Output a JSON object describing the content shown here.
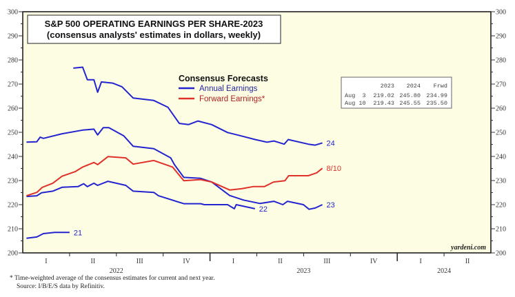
{
  "chart_data": {
    "type": "line",
    "title": "S&P 500 OPERATING EARNINGS PER SHARE-2023",
    "subtitle": "(consensus analysts' estimates in dollars, weekly)",
    "ylim": [
      200,
      300
    ],
    "yticks": [
      "200",
      "210",
      "220",
      "230",
      "240",
      "250",
      "260",
      "270",
      "280",
      "290",
      "300"
    ],
    "xlim": [
      2022.0,
      2024.5
    ],
    "x_quarters": [
      "I",
      "II",
      "III",
      "IV",
      "I",
      "II",
      "III",
      "IV",
      "I",
      "II"
    ],
    "x_years": [
      "2022",
      "2023",
      "2024"
    ],
    "legend": {
      "title": "Consensus Forecasts",
      "items": [
        "Annual Earnings",
        "Forward Earnings*"
      ],
      "placement": "top-center"
    },
    "colors": {
      "annual": "#2323d0",
      "forward": "#e0302a",
      "background": "#fdfde3"
    },
    "series": [
      {
        "name": "21",
        "label": "21",
        "color_key": "annual",
        "points": [
          [
            2022.02,
            206.1
          ],
          [
            2022.075,
            206.6
          ],
          [
            2022.11,
            208.0
          ],
          [
            2022.17,
            208.5
          ],
          [
            2022.25,
            208.5
          ]
        ]
      },
      {
        "name": "22",
        "label": "22",
        "color_key": "annual",
        "points": [
          [
            2022.02,
            223.4
          ],
          [
            2022.075,
            223.7
          ],
          [
            2022.1,
            224.9
          ],
          [
            2022.16,
            225.6
          ],
          [
            2022.21,
            227.2
          ],
          [
            2022.295,
            227.5
          ],
          [
            2022.325,
            228.7
          ],
          [
            2022.345,
            227.5
          ],
          [
            2022.38,
            228.9
          ],
          [
            2022.4,
            228.0
          ],
          [
            2022.455,
            229.7
          ],
          [
            2022.55,
            228.0
          ],
          [
            2022.59,
            225.6
          ],
          [
            2022.7,
            225.1
          ],
          [
            2022.725,
            223.7
          ],
          [
            2022.86,
            220.4
          ],
          [
            2022.95,
            220.4
          ],
          [
            2022.97,
            220.0
          ],
          [
            2023.094,
            220.0
          ],
          [
            2023.13,
            218.3
          ],
          [
            2023.14,
            220.0
          ],
          [
            2023.24,
            218.3
          ]
        ]
      },
      {
        "name": "23",
        "label": "23",
        "color_key": "annual",
        "points": [
          [
            2022.02,
            245.9
          ],
          [
            2022.075,
            246.1
          ],
          [
            2022.093,
            248.0
          ],
          [
            2022.11,
            247.5
          ],
          [
            2022.21,
            249.4
          ],
          [
            2022.32,
            250.9
          ],
          [
            2022.38,
            251.3
          ],
          [
            2022.4,
            248.9
          ],
          [
            2022.43,
            251.9
          ],
          [
            2022.46,
            251.9
          ],
          [
            2022.54,
            248.5
          ],
          [
            2022.59,
            244.2
          ],
          [
            2022.7,
            243.2
          ],
          [
            2022.79,
            239.4
          ],
          [
            2022.81,
            236.6
          ],
          [
            2022.86,
            231.3
          ],
          [
            2022.95,
            230.9
          ],
          [
            2023.009,
            229.4
          ],
          [
            2023.105,
            223.8
          ],
          [
            2023.179,
            221.9
          ],
          [
            2023.267,
            220.5
          ],
          [
            2023.341,
            221.4
          ],
          [
            2023.389,
            220.0
          ],
          [
            2023.414,
            221.4
          ],
          [
            2023.499,
            220.0
          ],
          [
            2023.529,
            218.1
          ],
          [
            2023.562,
            218.6
          ],
          [
            2023.6,
            220.0
          ]
        ]
      },
      {
        "name": "24",
        "label": "24",
        "color_key": "annual",
        "points": [
          [
            2022.27,
            276.6
          ],
          [
            2022.32,
            277.0
          ],
          [
            2022.345,
            271.8
          ],
          [
            2022.38,
            271.8
          ],
          [
            2022.4,
            266.6
          ],
          [
            2022.42,
            270.9
          ],
          [
            2022.48,
            270.4
          ],
          [
            2022.53,
            268.9
          ],
          [
            2022.59,
            264.2
          ],
          [
            2022.7,
            263.2
          ],
          [
            2022.775,
            260.4
          ],
          [
            2022.836,
            253.7
          ],
          [
            2022.885,
            253.2
          ],
          [
            2022.936,
            254.7
          ],
          [
            2023.009,
            253.2
          ],
          [
            2023.094,
            249.9
          ],
          [
            2023.168,
            248.5
          ],
          [
            2023.241,
            247.0
          ],
          [
            2023.304,
            245.9
          ],
          [
            2023.341,
            246.4
          ],
          [
            2023.396,
            245.1
          ],
          [
            2023.418,
            247.0
          ],
          [
            2023.525,
            245.1
          ],
          [
            2023.562,
            244.7
          ],
          [
            2023.6,
            245.6
          ]
        ]
      },
      {
        "name": "Forward",
        "label": "8/10",
        "color_key": "forward",
        "points": [
          [
            2022.02,
            223.7
          ],
          [
            2022.075,
            225.1
          ],
          [
            2022.105,
            227.2
          ],
          [
            2022.16,
            228.9
          ],
          [
            2022.21,
            231.8
          ],
          [
            2022.28,
            233.7
          ],
          [
            2022.32,
            235.6
          ],
          [
            2022.38,
            237.5
          ],
          [
            2022.4,
            236.6
          ],
          [
            2022.455,
            239.9
          ],
          [
            2022.55,
            239.4
          ],
          [
            2022.59,
            236.8
          ],
          [
            2022.7,
            238.3
          ],
          [
            2022.8,
            235.6
          ],
          [
            2022.86,
            229.9
          ],
          [
            2022.95,
            230.4
          ],
          [
            2023.009,
            229.4
          ],
          [
            2023.105,
            226.1
          ],
          [
            2023.168,
            226.6
          ],
          [
            2023.23,
            227.5
          ],
          [
            2023.29,
            227.5
          ],
          [
            2023.34,
            229.4
          ],
          [
            2023.4,
            229.9
          ],
          [
            2023.42,
            232.0
          ],
          [
            2023.525,
            232.0
          ],
          [
            2023.57,
            233.2
          ],
          [
            2023.6,
            235.1
          ]
        ]
      }
    ],
    "table": {
      "headers": [
        "",
        "2023",
        "2024",
        "Frwd"
      ],
      "rows": [
        [
          "Aug  3",
          "219.02",
          "245.80",
          "234.99"
        ],
        [
          "Aug 10",
          "219.43",
          "245.55",
          "235.50"
        ]
      ]
    },
    "source_tag": "yardeni.com",
    "footnote": "*  Time-weighted average of the consensus estimates for current and next year.",
    "source": "Source: I/B/E/S data by Refinitiv."
  }
}
